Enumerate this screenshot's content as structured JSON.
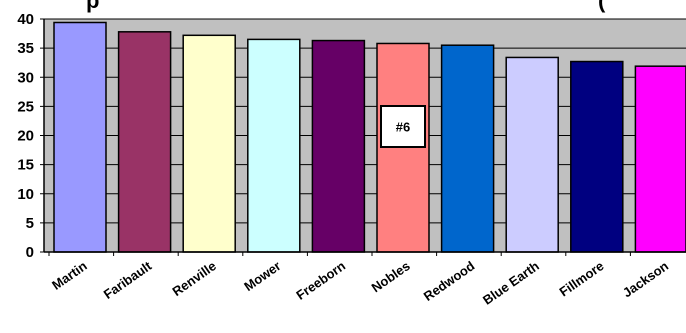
{
  "chart_data": {
    "type": "bar",
    "title_partial_left": "p",
    "title_partial_right": "(",
    "categories": [
      "Martin",
      "Faribault",
      "Renville",
      "Mower",
      "Freeborn",
      "Nobles",
      "Redwood",
      "Blue Earth",
      "Fillmore",
      "Jackson"
    ],
    "values": [
      39.4,
      37.8,
      37.2,
      36.5,
      36.3,
      35.8,
      35.5,
      33.4,
      32.7,
      31.9
    ],
    "colors": [
      "#9999ff",
      "#993366",
      "#ffffcc",
      "#ccffff",
      "#660066",
      "#ff8080",
      "#0066cc",
      "#ccccff",
      "#000080",
      "#ff00ff"
    ],
    "ylim": [
      0,
      40
    ],
    "yticks": [
      0,
      5,
      10,
      15,
      20,
      25,
      30,
      35,
      40
    ],
    "grid": true,
    "plot_background": "#c0c0c0",
    "annotation": {
      "text": "#6",
      "category": "Nobles"
    }
  }
}
